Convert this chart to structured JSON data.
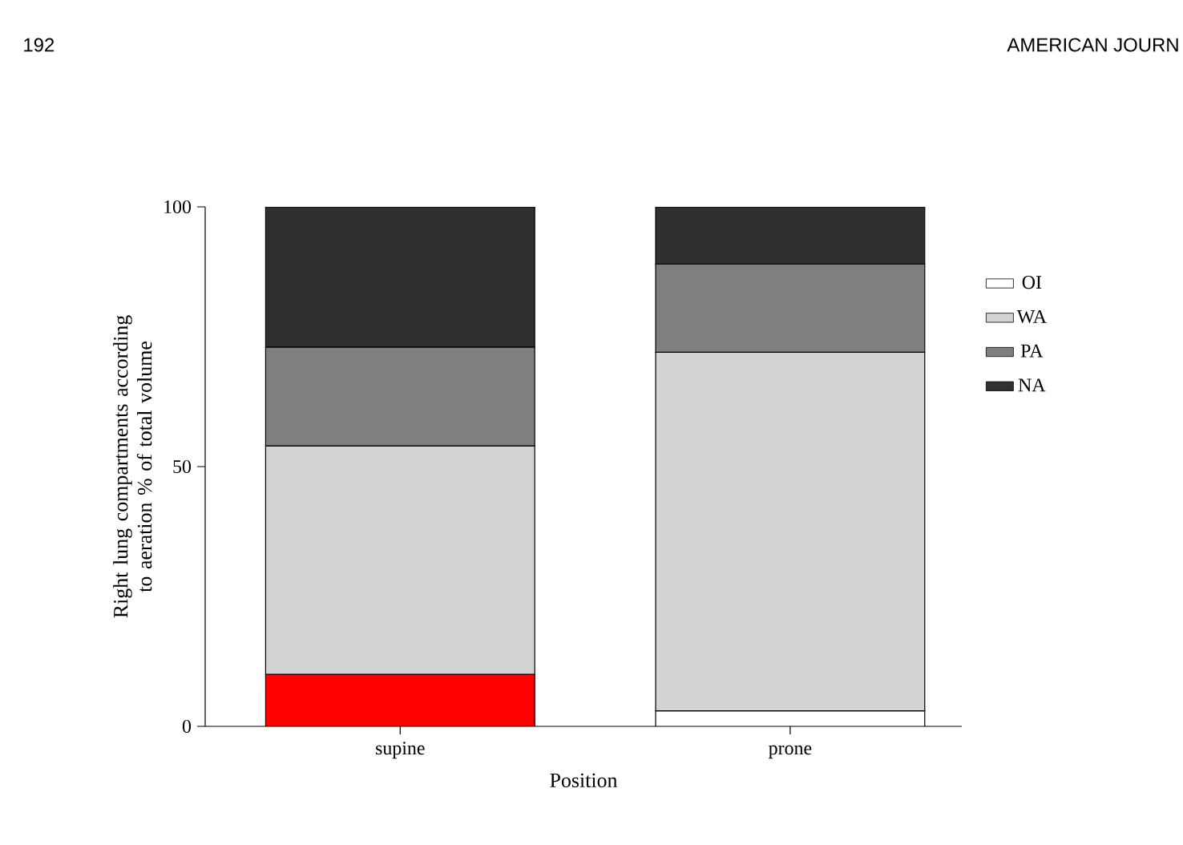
{
  "chart_data": {
    "type": "bar",
    "stacked": true,
    "xlabel": "Position",
    "ylabel": "Right lung compartments according to aeration % of total volume",
    "categories": [
      "supine",
      "prone"
    ],
    "series": [
      {
        "name": "OI",
        "color": "#ffffff",
        "colors": [
          "#ff0000",
          "#ffffff"
        ],
        "values": [
          10,
          3
        ]
      },
      {
        "name": "WA",
        "color": "#d3d3d3",
        "values": [
          44,
          69
        ]
      },
      {
        "name": "PA",
        "color": "#7f7f7f",
        "values": [
          19,
          17
        ]
      },
      {
        "name": "NA",
        "color": "#303030",
        "values": [
          27,
          11
        ]
      }
    ],
    "ylim": [
      0,
      100
    ],
    "yticks": [
      0,
      50,
      100
    ],
    "legend": "right",
    "annotations": [
      "192",
      "AMERICAN JOURN"
    ]
  }
}
